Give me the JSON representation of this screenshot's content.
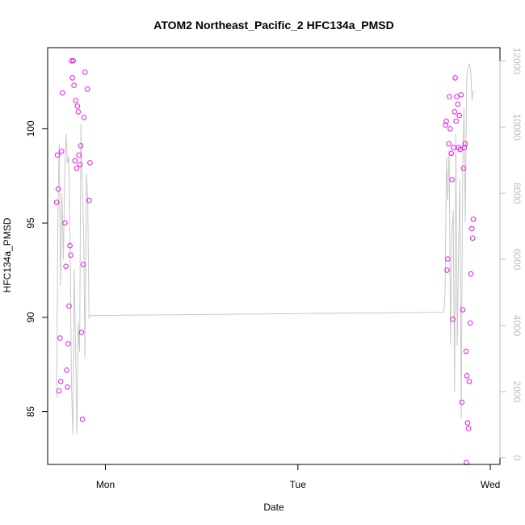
{
  "chart_data": {
    "type": "scatter",
    "title": "ATOM2 Northeast_Pacific_2 HFC134a_PMSD",
    "xlabel": "Date",
    "ylabel": "HFC134a_PMSD",
    "x_unit": "days since Mon 00:00",
    "xlim": [
      -0.3,
      2.05
    ],
    "ylim": [
      82.2,
      104.3
    ],
    "y2lim": [
      -200,
      12400
    ],
    "x_ticks": [
      {
        "value": 0,
        "label": "Mon"
      },
      {
        "value": 1,
        "label": "Tue"
      },
      {
        "value": 2,
        "label": "Wed"
      }
    ],
    "y_ticks": [
      {
        "value": 85,
        "label": "85"
      },
      {
        "value": 90,
        "label": "90"
      },
      {
        "value": 95,
        "label": "95"
      },
      {
        "value": 100,
        "label": "100"
      }
    ],
    "y2_ticks": [
      {
        "value": 0,
        "label": "0"
      },
      {
        "value": 2000,
        "label": "2000"
      },
      {
        "value": 4000,
        "label": "4000"
      },
      {
        "value": 6000,
        "label": "6000"
      },
      {
        "value": 8000,
        "label": "8000"
      },
      {
        "value": 10000,
        "label": "10000"
      },
      {
        "value": 12000,
        "label": "12000"
      }
    ],
    "colors": {
      "points": "#e619e6",
      "line": "#c8c8c8",
      "right_axis": "#bdbdbd"
    },
    "grid": false,
    "series": [
      {
        "type": "scatter",
        "axis": "left",
        "points": [
          [
            -0.253,
            96.1
          ],
          [
            -0.249,
            98.6
          ],
          [
            -0.245,
            96.8
          ],
          [
            -0.241,
            86.1
          ],
          [
            -0.236,
            88.9
          ],
          [
            -0.232,
            86.6
          ],
          [
            -0.228,
            98.8
          ],
          [
            -0.223,
            101.9
          ],
          [
            -0.21,
            95.0
          ],
          [
            -0.205,
            92.7
          ],
          [
            -0.201,
            87.2
          ],
          [
            -0.197,
            86.3
          ],
          [
            -0.193,
            88.6
          ],
          [
            -0.189,
            90.6
          ],
          [
            -0.184,
            93.8
          ],
          [
            -0.18,
            93.3
          ],
          [
            -0.175,
            103.6
          ],
          [
            -0.171,
            102.7
          ],
          [
            -0.167,
            103.6
          ],
          [
            -0.163,
            102.3
          ],
          [
            -0.158,
            98.3
          ],
          [
            -0.154,
            101.5
          ],
          [
            -0.149,
            97.9
          ],
          [
            -0.145,
            101.2
          ],
          [
            -0.141,
            100.9
          ],
          [
            -0.137,
            98.6
          ],
          [
            -0.132,
            98.1
          ],
          [
            -0.128,
            99.1
          ],
          [
            -0.124,
            89.2
          ],
          [
            -0.119,
            84.6
          ],
          [
            -0.115,
            92.8
          ],
          [
            -0.111,
            100.6
          ],
          [
            -0.106,
            103.0
          ],
          [
            -0.093,
            102.1
          ],
          [
            -0.084,
            96.2
          ],
          [
            -0.08,
            98.2
          ],
          [
            1.767,
            100.2
          ],
          [
            1.771,
            100.4
          ],
          [
            1.775,
            92.5
          ],
          [
            1.779,
            93.1
          ],
          [
            1.784,
            99.2
          ],
          [
            1.788,
            101.7
          ],
          [
            1.792,
            100.0
          ],
          [
            1.797,
            98.7
          ],
          [
            1.801,
            97.3
          ],
          [
            1.805,
            89.9
          ],
          [
            1.809,
            99.0
          ],
          [
            1.814,
            100.9
          ],
          [
            1.818,
            102.7
          ],
          [
            1.822,
            100.4
          ],
          [
            1.826,
            101.7
          ],
          [
            1.831,
            101.3
          ],
          [
            1.835,
            99.0
          ],
          [
            1.839,
            100.7
          ],
          [
            1.843,
            98.9
          ],
          [
            1.848,
            101.8
          ],
          [
            1.852,
            85.5
          ],
          [
            1.857,
            90.4
          ],
          [
            1.861,
            97.9
          ],
          [
            1.865,
            99.0
          ],
          [
            1.869,
            99.2
          ],
          [
            1.874,
            88.2
          ],
          [
            1.878,
            86.9
          ],
          [
            1.882,
            84.4
          ],
          [
            1.887,
            84.1
          ],
          [
            1.891,
            86.6
          ],
          [
            1.895,
            89.7
          ],
          [
            1.899,
            92.3
          ],
          [
            1.904,
            94.7
          ],
          [
            1.908,
            94.2
          ],
          [
            1.912,
            95.2
          ],
          [
            1.876,
            82.3
          ]
        ]
      },
      {
        "type": "line",
        "axis": "right",
        "points": [
          [
            -0.253,
            1800
          ],
          [
            -0.247,
            7200
          ],
          [
            -0.24,
            9500
          ],
          [
            -0.233,
            5200
          ],
          [
            -0.226,
            8000
          ],
          [
            -0.218,
            6000
          ],
          [
            -0.211,
            8700
          ],
          [
            -0.204,
            9800
          ],
          [
            -0.197,
            8900
          ],
          [
            -0.19,
            9100
          ],
          [
            -0.183,
            6200
          ],
          [
            -0.176,
            2200
          ],
          [
            -0.169,
            700
          ],
          [
            -0.162,
            5700
          ],
          [
            -0.155,
            3300
          ],
          [
            -0.148,
            700
          ],
          [
            -0.141,
            4100
          ],
          [
            -0.134,
            3200
          ],
          [
            -0.127,
            10100
          ],
          [
            -0.12,
            8200
          ],
          [
            -0.113,
            6800
          ],
          [
            -0.106,
            3000
          ],
          [
            -0.099,
            8600
          ],
          [
            -0.092,
            7800
          ],
          [
            -0.085,
            4200
          ],
          [
            -0.08,
            4300
          ],
          [
            1.758,
            4400
          ],
          [
            1.765,
            5000
          ],
          [
            1.772,
            9100
          ],
          [
            1.779,
            7800
          ],
          [
            1.786,
            9300
          ],
          [
            1.793,
            3400
          ],
          [
            1.8,
            6700
          ],
          [
            1.807,
            7500
          ],
          [
            1.814,
            2000
          ],
          [
            1.821,
            9800
          ],
          [
            1.828,
            3400
          ],
          [
            1.835,
            6400
          ],
          [
            1.842,
            8400
          ],
          [
            1.849,
            1200
          ],
          [
            1.856,
            8700
          ],
          [
            1.863,
            10600
          ],
          [
            1.87,
            7100
          ],
          [
            1.877,
            11500
          ],
          [
            1.884,
            11800
          ],
          [
            1.891,
            11900
          ],
          [
            1.898,
            11700
          ],
          [
            1.905,
            10800
          ],
          [
            1.912,
            11100
          ]
        ]
      }
    ]
  }
}
